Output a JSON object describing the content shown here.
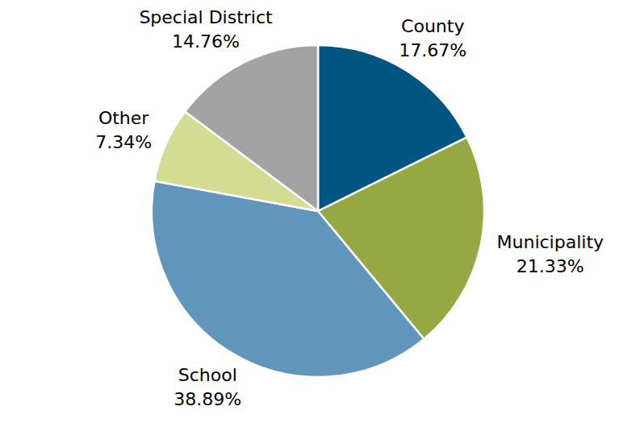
{
  "chart_data": {
    "type": "pie",
    "categories": [
      "County",
      "Municipality",
      "School",
      "Other",
      "Special District"
    ],
    "values": [
      17.67,
      21.33,
      38.89,
      7.34,
      14.76
    ],
    "value_labels": [
      "17.67%",
      "21.33%",
      "38.89%",
      "7.34%",
      "14.76%"
    ],
    "colors": [
      "#005581",
      "#95a844",
      "#6096bb",
      "#d4db93",
      "#a3a3a4"
    ],
    "data_labels": true
  }
}
